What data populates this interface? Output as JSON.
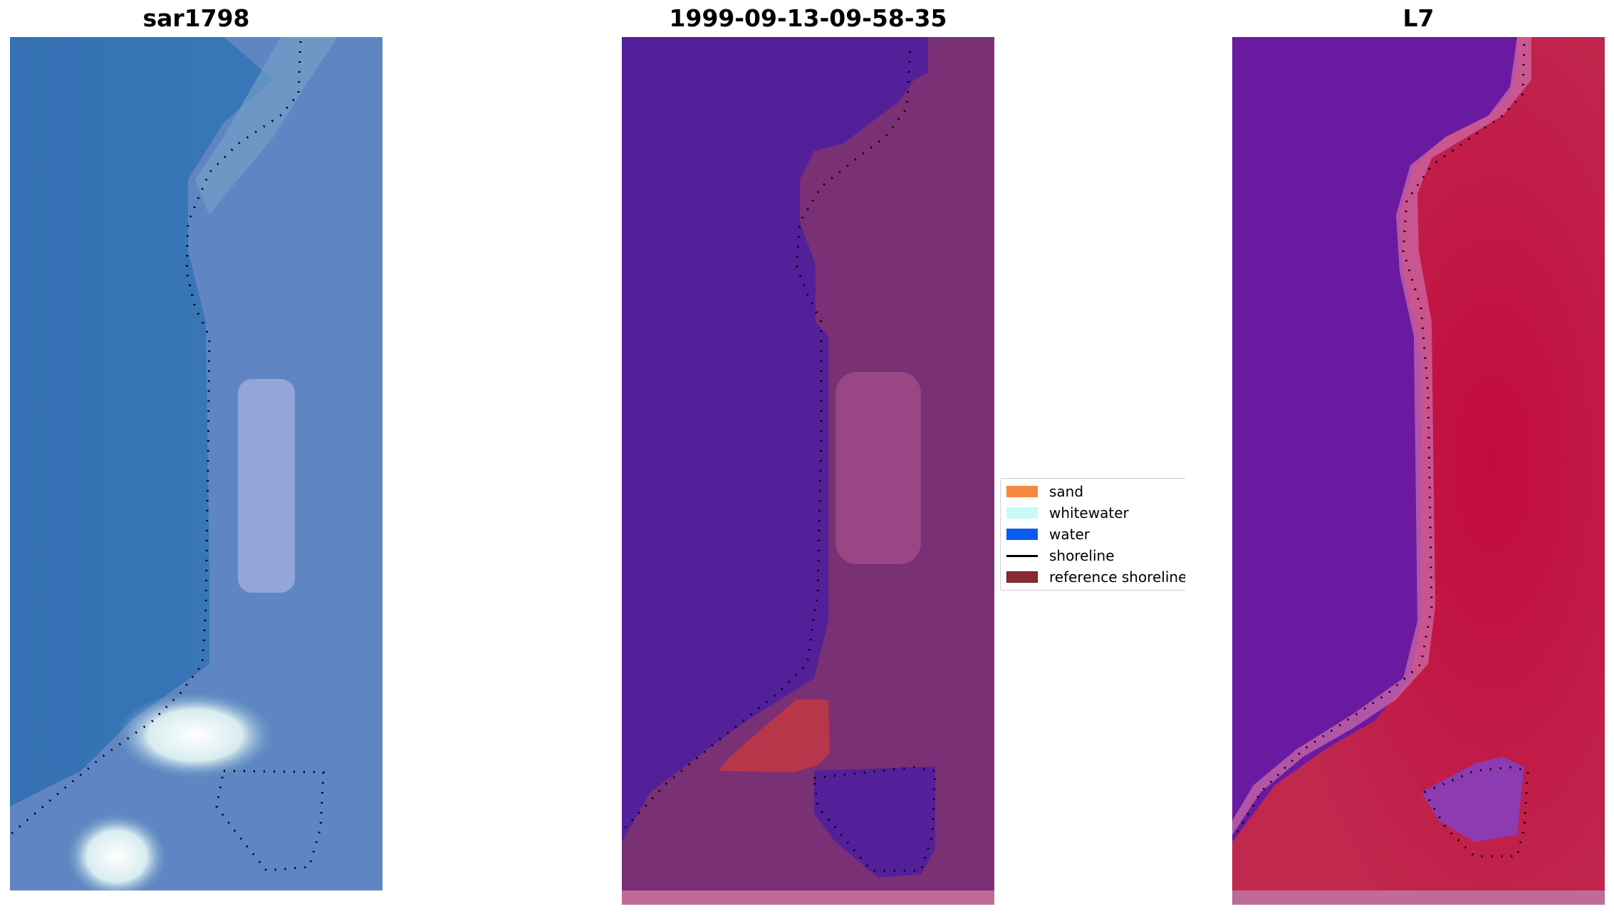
{
  "panels": [
    {
      "title": "sar1798"
    },
    {
      "title": "1999-09-13-09-58-35"
    },
    {
      "title": "L7"
    }
  ],
  "legend": {
    "items": [
      {
        "label": "sand",
        "color": "#f5893f",
        "kind": "patch"
      },
      {
        "label": "whitewater",
        "color": "#c8fbf5",
        "kind": "patch"
      },
      {
        "label": "water",
        "color": "#0a5cf0",
        "kind": "patch"
      },
      {
        "label": "shoreline",
        "color": "#000000",
        "kind": "line"
      },
      {
        "label": "reference shoreline buffer",
        "color": "#8b2a33",
        "kind": "patch"
      }
    ]
  },
  "colors": {
    "rgb_water": "#3a78b8",
    "rgb_land": "#6a8ac4",
    "rgb_whitewater": "#e8f2ff",
    "class_water": "#53209a",
    "class_land": "#7a3074",
    "class_bright": "#a04c8a",
    "class_buffer": "#b8364a",
    "class_strip": "#c06a98",
    "index_water": "#6a1aa0",
    "index_land": "#c0174c",
    "index_edge": "#cc6aa8"
  }
}
